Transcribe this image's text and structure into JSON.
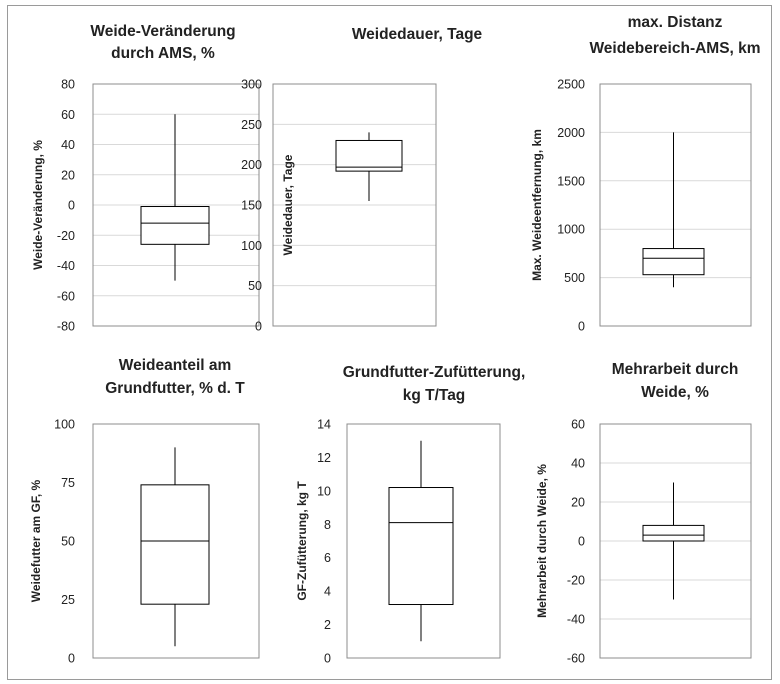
{
  "chart_data": [
    {
      "type": "boxplot",
      "title": [
        "Weide-Veränderung",
        "durch AMS, %"
      ],
      "ylabel": "Weide-Veränderung,  %",
      "ylim": [
        -80,
        80
      ],
      "yticks": [
        -80,
        -60,
        -40,
        -20,
        0,
        20,
        40,
        60,
        80
      ],
      "grid": true,
      "box": {
        "min": -50,
        "q1": -26,
        "median": -12,
        "q3": -1,
        "max": 60
      }
    },
    {
      "type": "boxplot",
      "title": [
        "Weidedauer, Tage"
      ],
      "ylabel": "Weidedauer, Tage",
      "ylim": [
        0,
        300
      ],
      "yticks": [
        0,
        50,
        100,
        150,
        200,
        250,
        300
      ],
      "grid": true,
      "box": {
        "min": 155,
        "q1": 192,
        "median": 197,
        "q3": 230,
        "max": 240
      }
    },
    {
      "type": "boxplot",
      "title": [
        "max. Distanz",
        "Weidebereich-AMS, km"
      ],
      "ylabel": "Max. Weideentfernung, km",
      "ylim": [
        0,
        2500
      ],
      "yticks": [
        0,
        500,
        1000,
        1500,
        2000,
        2500
      ],
      "grid": true,
      "box": {
        "min": 400,
        "q1": 530,
        "median": 700,
        "q3": 800,
        "max": 2000
      }
    },
    {
      "type": "boxplot",
      "title": [
        "Weideanteil am",
        "Grundfutter, % d. T"
      ],
      "ylabel": "Weidefutter am GF, %",
      "ylim": [
        0,
        100
      ],
      "yticks": [
        0,
        25,
        50,
        75,
        100
      ],
      "grid": false,
      "box": {
        "min": 5,
        "q1": 23,
        "median": 50,
        "q3": 74,
        "max": 90
      }
    },
    {
      "type": "boxplot",
      "title": [
        "Grundfutter-Zufütterung,",
        "kg T/Tag"
      ],
      "ylabel": "GF-Zufütterung, kg T",
      "ylim": [
        0,
        14
      ],
      "yticks": [
        0,
        2,
        4,
        6,
        8,
        10,
        12,
        14
      ],
      "grid": false,
      "box": {
        "min": 1,
        "q1": 3.2,
        "median": 8.1,
        "q3": 10.2,
        "max": 13
      }
    },
    {
      "type": "boxplot",
      "title": [
        "Mehrarbeit durch",
        "Weide, %"
      ],
      "ylabel": "Mehrarbeit durch Weide, %",
      "ylim": [
        -60,
        60
      ],
      "yticks": [
        -60,
        -40,
        -20,
        0,
        20,
        40,
        60
      ],
      "grid": true,
      "box": {
        "min": -30,
        "q1": 0,
        "median": 3,
        "q3": 8,
        "max": 30
      }
    }
  ]
}
